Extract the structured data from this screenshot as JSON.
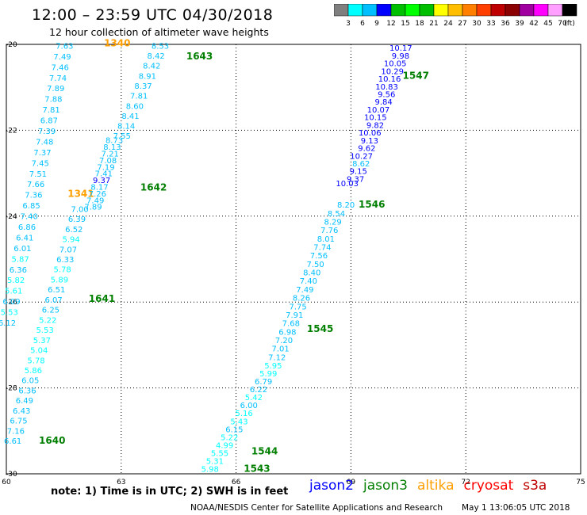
{
  "header": {
    "title": "12:00 – 23:59 UTC 04/30/2018",
    "subtitle": "12 hour collection of altimeter wave heights"
  },
  "legend": {
    "colors": [
      "#7f7f7f",
      "#00ffff",
      "#00bfff",
      "#0000ff",
      "#00bf00",
      "#00ff00",
      "#00bf00",
      "#ffff00",
      "#ffbf00",
      "#ff7f00",
      "#ff3f00",
      "#bf0000",
      "#8b0000",
      "#9f009f",
      "#ff00ff",
      "#ff9fff",
      "#000000"
    ],
    "labels": [
      "3",
      "6",
      "9",
      "12",
      "15",
      "18",
      "21",
      "24",
      "27",
      "30",
      "33",
      "36",
      "39",
      "42",
      "45",
      "70",
      "(ft)"
    ]
  },
  "axes": {
    "x_ticks": [
      "60",
      "63",
      "66",
      "69",
      "72",
      "75"
    ],
    "y_ticks": [
      "-20",
      "-22",
      "-24",
      "-26",
      "-28",
      "-30"
    ],
    "x_range": [
      60,
      75
    ],
    "y_range": [
      -30,
      -20
    ]
  },
  "tracks": [
    {
      "id": "1340",
      "sat": "altika",
      "label_lon": 62.55,
      "label_lat": -20.05,
      "lon0": 61.75,
      "lat0": -20.1,
      "lon1": 60.25,
      "lat1": -26.55,
      "values": [
        "7.63",
        "7.49",
        "7.46",
        "7.74",
        "7.89",
        "7.88",
        "7.81",
        "6.87",
        "7.39",
        "7.48",
        "7.37",
        "7.45",
        "7.51",
        "7.66",
        "7.36",
        "6.85",
        "7.40",
        "6.86",
        "6.41",
        "6.01",
        "5.87",
        "6.36",
        "5.82",
        "5.61",
        "6.09",
        "5.53",
        "6.12"
      ]
    },
    {
      "id": "1341",
      "sat": "altika",
      "label_lon": 61.6,
      "label_lat": -23.55,
      "values": []
    },
    {
      "id": "1640",
      "sat": "jason3",
      "label_lon": 60.85,
      "label_lat": -29.3,
      "lon0": 62.15,
      "lat0": -23.9,
      "lon1": 60.4,
      "lat1": -29.3,
      "values": [
        "7.00",
        "6.39",
        "6.52",
        "5.94",
        "7.07",
        "6.33",
        "5.78",
        "5.89",
        "6.51",
        "6.07",
        "6.25",
        "5.22",
        "5.53",
        "5.37",
        "5.04",
        "5.78",
        "5.86",
        "6.05",
        "6.36",
        "6.49",
        "6.43",
        "6.75",
        "7.16",
        "6.61"
      ]
    },
    {
      "id": "1641",
      "sat": "jason3",
      "label_lon": 62.15,
      "label_lat": -26.0,
      "values": []
    },
    {
      "id": "1642",
      "sat": "jason3",
      "label_lon": 63.5,
      "label_lat": -23.4,
      "lon0": 63.05,
      "lat0": -22.3,
      "lon1": 62.5,
      "lat1": -23.85,
      "values": [
        "8.73",
        "8.13",
        "7.21",
        "7.08",
        "7.19",
        "7.41",
        "9.37",
        "8.17",
        "7.26",
        "7.49",
        "7.89"
      ]
    },
    {
      "id": "1643",
      "sat": "jason3",
      "label_lon": 64.7,
      "label_lat": -20.35,
      "lon0": 64.25,
      "lat0": -20.1,
      "lon1": 63.25,
      "lat1": -22.2,
      "values": [
        "8.53",
        "8.42",
        "8.42",
        "8.91",
        "8.37",
        "7.81",
        "8.60",
        "8.41",
        "8.14",
        "7.55"
      ]
    },
    {
      "id": "1543",
      "sat": "jason3",
      "label_lon": 66.2,
      "label_lat": -29.95,
      "values": []
    },
    {
      "id": "1544",
      "sat": "jason3",
      "label_lon": 66.4,
      "label_lat": -29.55,
      "lon0": 67.2,
      "lat0": -27.55,
      "lon1": 65.55,
      "lat1": -29.95,
      "values": [
        "5.95",
        "5.99",
        "6.79",
        "6.22",
        "5.42",
        "6.00",
        "5.16",
        "5.43",
        "6.15",
        "5.22",
        "4.99",
        "5.55",
        "5.31",
        "5.98"
      ]
    },
    {
      "id": "1545",
      "sat": "jason3",
      "label_lon": 67.85,
      "label_lat": -26.7,
      "lon0": 68.85,
      "lat0": -24.0,
      "lon1": 67.3,
      "lat1": -27.35,
      "values": [
        "8.54",
        "8.29",
        "7.76",
        "8.01",
        "7.74",
        "7.56",
        "7.50",
        "8.40",
        "7.40",
        "7.49",
        "8.26",
        "7.75",
        "7.91",
        "7.68",
        "6.98",
        "7.20",
        "7.01",
        "7.12"
      ]
    },
    {
      "id": "1546",
      "sat": "jason3",
      "label_lon": 69.2,
      "label_lat": -23.8,
      "lon0": 69.2,
      "lat0": -23.3,
      "lon1": 69.1,
      "lat1": -23.8,
      "values": [
        "10.03",
        "8.20"
      ]
    },
    {
      "id": "1547",
      "sat": "jason3",
      "label_lon": 70.35,
      "label_lat": -20.8,
      "lon0": 70.6,
      "lat0": -20.15,
      "lon1": 69.35,
      "lat1": -23.2,
      "values": [
        "10.17",
        "9.98",
        "10.05",
        "10.29",
        "10.16",
        "10.83",
        "9.56",
        "9.84",
        "10.07",
        "10.15",
        "9.82",
        "10.06",
        "9.13",
        "9.62",
        "10.27",
        "8.62",
        "9.15",
        "9.37"
      ]
    }
  ],
  "footer": {
    "note": "note: 1) Time is in UTC; 2) SWH is in feet",
    "satellites": [
      {
        "name": "jason2",
        "color": "#0000ff"
      },
      {
        "name": "jason3",
        "color": "#007f00"
      },
      {
        "name": "altika",
        "color": "#ff9f00"
      },
      {
        "name": "cryosat",
        "color": "#ff0000"
      },
      {
        "name": "s3a",
        "color": "#bf0000"
      }
    ],
    "credit": "NOAA/NESDIS Center for Satellite Applications and Research",
    "timestamp": "May  1 13:06:05 UTC 2018"
  }
}
